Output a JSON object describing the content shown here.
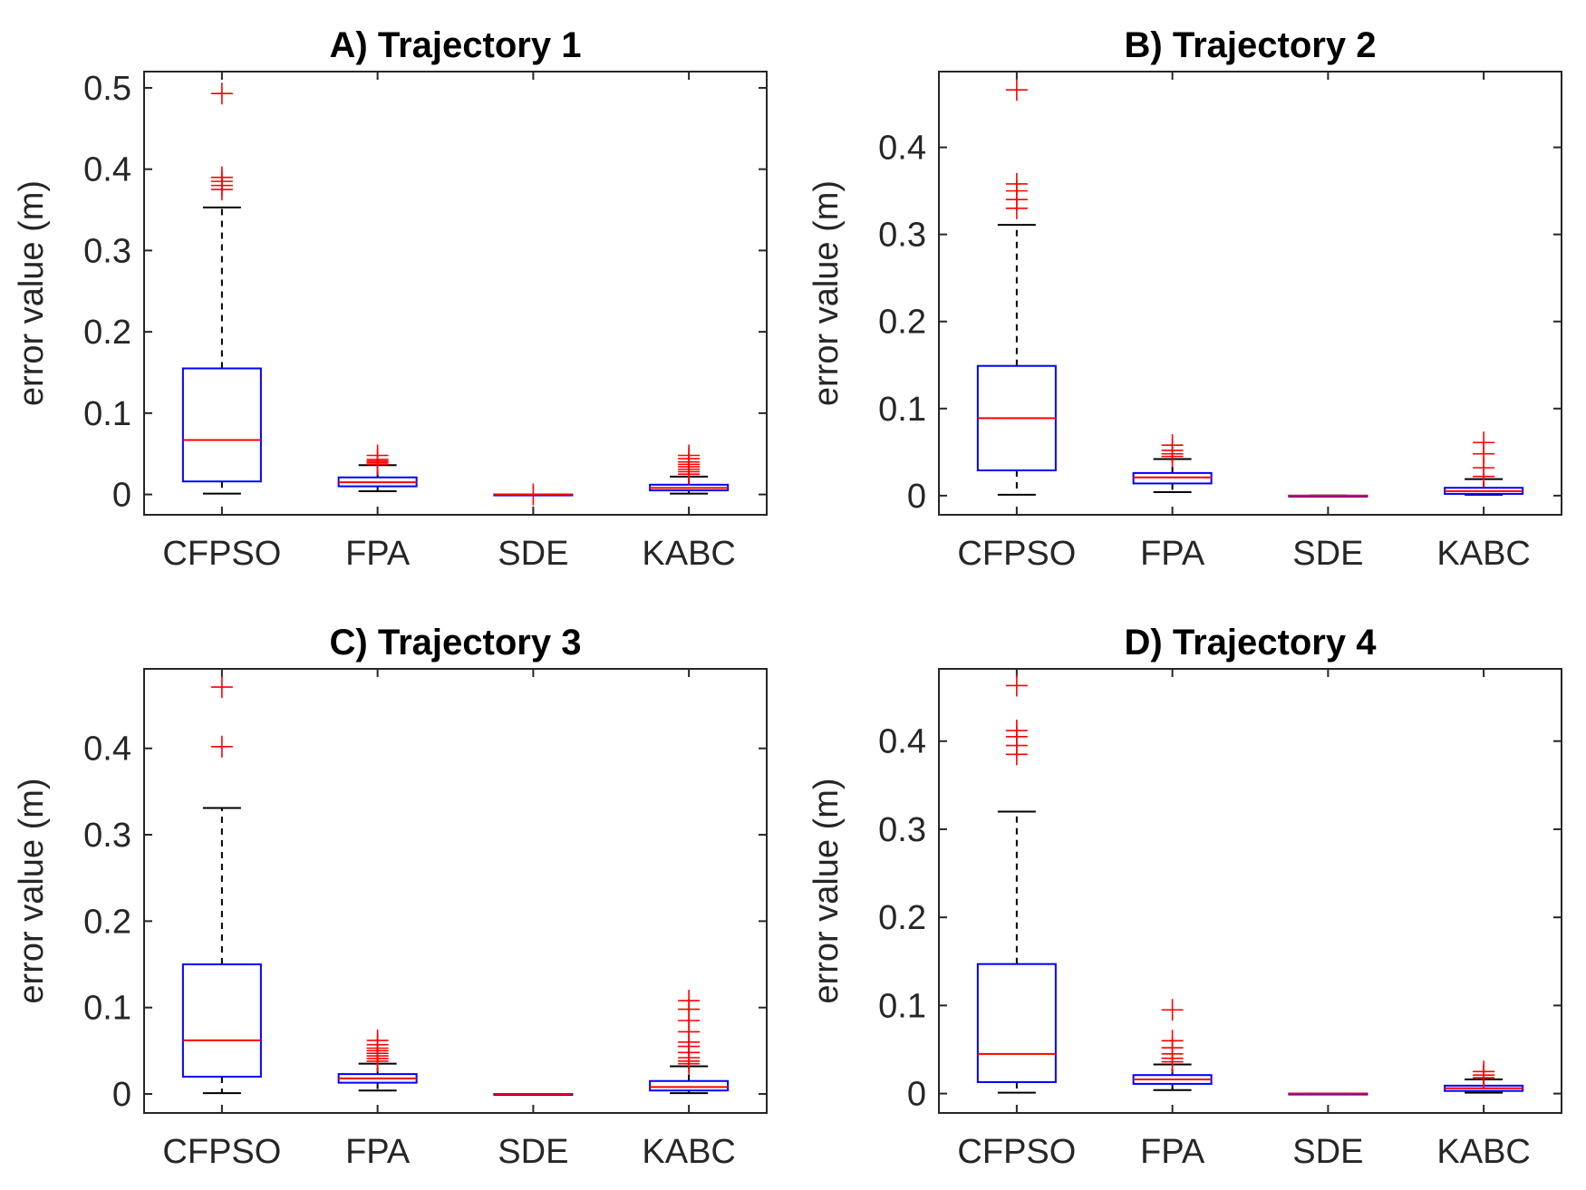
{
  "chart_data": [
    {
      "type": "box",
      "title": "A) Trajectory 1",
      "ylabel": "error value (m)",
      "xlabel": "",
      "categories": [
        "CFPSO",
        "FPA",
        "SDE",
        "KABC"
      ],
      "ylim": [
        -0.025,
        0.52
      ],
      "yticks": [
        0,
        0.1,
        0.2,
        0.3,
        0.4,
        0.5
      ],
      "ytick_labels": [
        "0",
        "0.1",
        "0.2",
        "0.3",
        "0.4",
        "0.5"
      ],
      "grid": false,
      "series": [
        {
          "category": "CFPSO",
          "min": 0.001,
          "q1": 0.016,
          "median": 0.067,
          "q3": 0.155,
          "max": 0.353,
          "outliers": [
            0.375,
            0.38,
            0.385,
            0.39,
            0.493
          ]
        },
        {
          "category": "FPA",
          "min": 0.004,
          "q1": 0.01,
          "median": 0.015,
          "q3": 0.021,
          "max": 0.036,
          "outliers": [
            0.037,
            0.039,
            0.041,
            0.043,
            0.048
          ]
        },
        {
          "category": "SDE",
          "min": 0.0,
          "q1": 0.0,
          "median": 0.0,
          "q3": 0.0,
          "max": 0.0,
          "outliers": [
            0.0
          ]
        },
        {
          "category": "KABC",
          "min": 0.001,
          "q1": 0.005,
          "median": 0.008,
          "q3": 0.012,
          "max": 0.022,
          "outliers": [
            0.025,
            0.028,
            0.031,
            0.034,
            0.037,
            0.04,
            0.044,
            0.048
          ]
        }
      ]
    },
    {
      "type": "box",
      "title": "B) Trajectory 2",
      "ylabel": "error value (m)",
      "xlabel": "",
      "categories": [
        "CFPSO",
        "FPA",
        "SDE",
        "KABC"
      ],
      "ylim": [
        -0.022,
        0.487
      ],
      "yticks": [
        0,
        0.1,
        0.2,
        0.3,
        0.4
      ],
      "ytick_labels": [
        "0",
        "0.1",
        "0.2",
        "0.3",
        "0.4"
      ],
      "grid": false,
      "series": [
        {
          "category": "CFPSO",
          "min": 0.001,
          "q1": 0.029,
          "median": 0.089,
          "q3": 0.149,
          "max": 0.311,
          "outliers": [
            0.33,
            0.34,
            0.35,
            0.358,
            0.466
          ]
        },
        {
          "category": "FPA",
          "min": 0.004,
          "q1": 0.014,
          "median": 0.021,
          "q3": 0.026,
          "max": 0.042,
          "outliers": [
            0.045,
            0.048,
            0.052,
            0.058
          ]
        },
        {
          "category": "SDE",
          "min": 0.0,
          "q1": 0.0,
          "median": 0.0,
          "q3": 0.0,
          "max": 0.0,
          "outliers": []
        },
        {
          "category": "KABC",
          "min": 0.001,
          "q1": 0.002,
          "median": 0.005,
          "q3": 0.009,
          "max": 0.019,
          "outliers": [
            0.022,
            0.032,
            0.048,
            0.061
          ]
        }
      ]
    },
    {
      "type": "box",
      "title": "C) Trajectory 3",
      "ylabel": "error value (m)",
      "xlabel": "",
      "categories": [
        "CFPSO",
        "FPA",
        "SDE",
        "KABC"
      ],
      "ylim": [
        -0.022,
        0.492
      ],
      "yticks": [
        0,
        0.1,
        0.2,
        0.3,
        0.4
      ],
      "ytick_labels": [
        "0",
        "0.1",
        "0.2",
        "0.3",
        "0.4"
      ],
      "grid": false,
      "series": [
        {
          "category": "CFPSO",
          "min": 0.001,
          "q1": 0.02,
          "median": 0.062,
          "q3": 0.15,
          "max": 0.331,
          "outliers": [
            0.402,
            0.471
          ]
        },
        {
          "category": "FPA",
          "min": 0.004,
          "q1": 0.013,
          "median": 0.018,
          "q3": 0.023,
          "max": 0.035,
          "outliers": [
            0.038,
            0.041,
            0.044,
            0.047,
            0.05,
            0.053,
            0.057,
            0.062
          ]
        },
        {
          "category": "SDE",
          "min": 0.0,
          "q1": 0.0,
          "median": 0.0,
          "q3": 0.0,
          "max": 0.0,
          "outliers": []
        },
        {
          "category": "KABC",
          "min": 0.001,
          "q1": 0.004,
          "median": 0.008,
          "q3": 0.015,
          "max": 0.032,
          "outliers": [
            0.035,
            0.038,
            0.042,
            0.048,
            0.055,
            0.06,
            0.072,
            0.085,
            0.098,
            0.108
          ]
        }
      ]
    },
    {
      "type": "box",
      "title": "D) Trajectory 4",
      "ylabel": "error value (m)",
      "xlabel": "",
      "categories": [
        "CFPSO",
        "FPA",
        "SDE",
        "KABC"
      ],
      "ylim": [
        -0.022,
        0.482
      ],
      "yticks": [
        0,
        0.1,
        0.2,
        0.3,
        0.4
      ],
      "ytick_labels": [
        "0",
        "0.1",
        "0.2",
        "0.3",
        "0.4"
      ],
      "grid": false,
      "series": [
        {
          "category": "CFPSO",
          "min": 0.001,
          "q1": 0.013,
          "median": 0.045,
          "q3": 0.147,
          "max": 0.32,
          "outliers": [
            0.385,
            0.395,
            0.405,
            0.412,
            0.463
          ]
        },
        {
          "category": "FPA",
          "min": 0.004,
          "q1": 0.011,
          "median": 0.016,
          "q3": 0.021,
          "max": 0.033,
          "outliers": [
            0.036,
            0.04,
            0.045,
            0.052,
            0.06,
            0.095
          ]
        },
        {
          "category": "SDE",
          "min": 0.0,
          "q1": 0.0,
          "median": 0.0,
          "q3": 0.0,
          "max": 0.0,
          "outliers": []
        },
        {
          "category": "KABC",
          "min": 0.001,
          "q1": 0.003,
          "median": 0.006,
          "q3": 0.009,
          "max": 0.016,
          "outliers": [
            0.018,
            0.021,
            0.025
          ]
        }
      ]
    }
  ],
  "colors": {
    "box": "#0000ff",
    "median": "#ff0000",
    "outlier": "#ff0000",
    "whisker": "#000000",
    "axis": "#262626"
  }
}
